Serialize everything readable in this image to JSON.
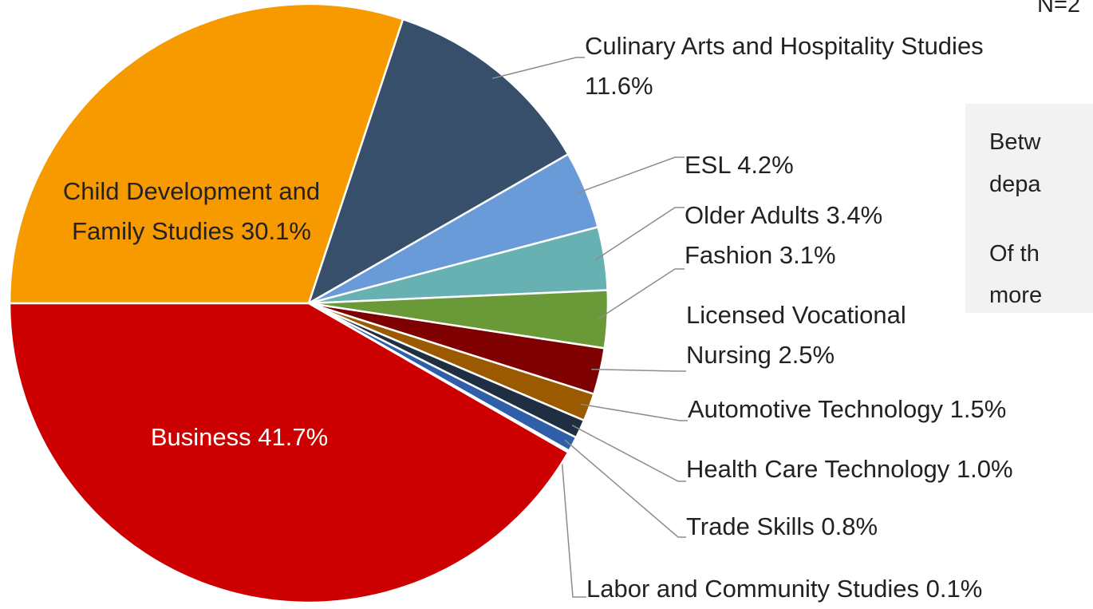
{
  "chart_data": {
    "type": "pie",
    "categories": [
      "Child Development and Family Studies",
      "Culinary Arts and Hospitality Studies",
      "ESL",
      "Older Adults",
      "Fashion",
      "Licensed Vocational Nursing",
      "Automotive Technology",
      "Health Care Technology",
      "Trade Skills",
      "Labor and Community Studies",
      "Business"
    ],
    "values": [
      30.1,
      11.6,
      4.2,
      3.4,
      3.1,
      2.5,
      1.5,
      1.0,
      0.8,
      0.1,
      41.7
    ],
    "value_labels": [
      "30.1%",
      "11.6%",
      "4.2%",
      "3.4%",
      "3.1%",
      "2.5%",
      "1.5%",
      "1.0%",
      "0.8%",
      "0.1%",
      "41.7%"
    ],
    "colors": [
      "#f79a00",
      "#374f6a",
      "#6a9bd9",
      "#67b1b3",
      "#6a9a37",
      "#7f0000",
      "#9c5a00",
      "#1f2e40",
      "#2e5fa8",
      "#8a8a8a",
      "#cc0000"
    ],
    "annotations": [
      "N=2",
      "Betw",
      "depa",
      "Of th",
      "more"
    ]
  }
}
